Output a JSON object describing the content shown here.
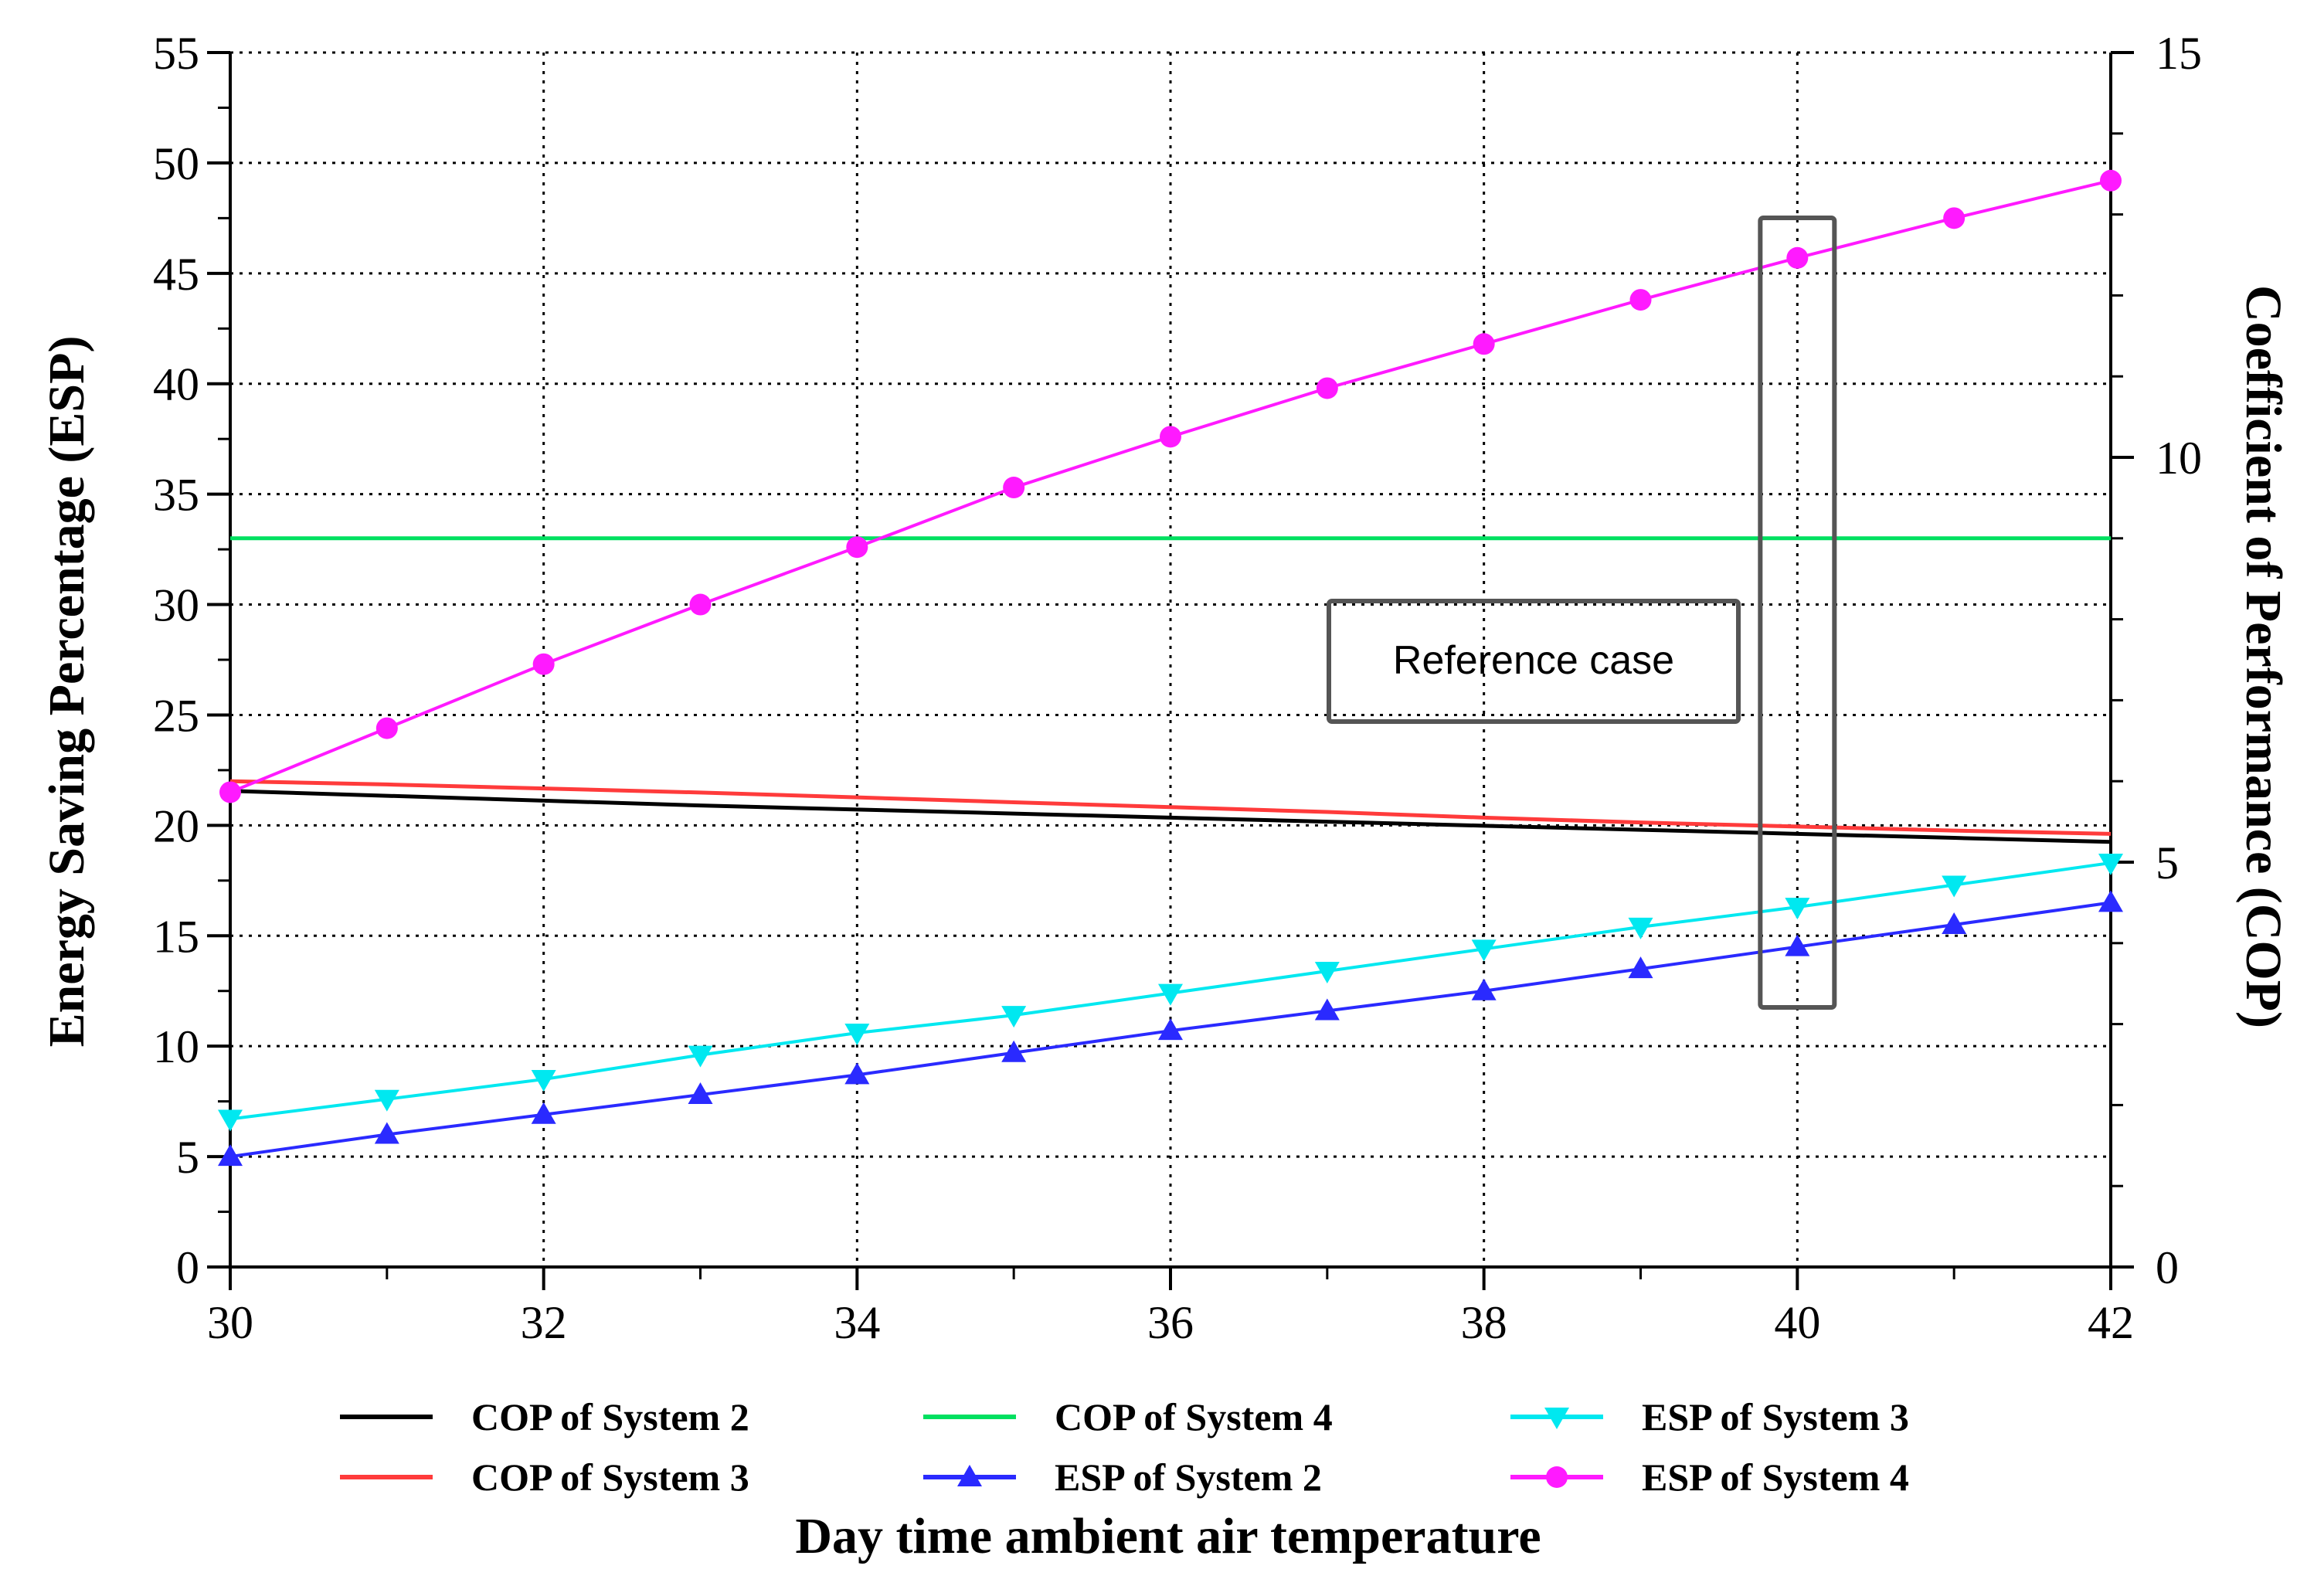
{
  "chart_data": {
    "type": "line",
    "xlabel": "Day time ambient air temperature",
    "ylabel": "Energy Saving Percentage (ESP)",
    "y2label": "Coefficient of Performance (COP)",
    "xlim": [
      30,
      42
    ],
    "ylim": [
      0,
      55
    ],
    "y2lim": [
      0,
      15
    ],
    "x_ticks": [
      30,
      32,
      34,
      36,
      38,
      40,
      42
    ],
    "y_ticks": [
      0,
      5,
      10,
      15,
      20,
      25,
      30,
      35,
      40,
      45,
      50,
      55
    ],
    "y2_ticks": [
      0,
      5,
      10,
      15
    ],
    "grid": true,
    "legend_position": "bottom",
    "x": [
      30,
      31,
      32,
      33,
      34,
      35,
      36,
      37,
      38,
      39,
      40,
      41,
      42
    ],
    "series": [
      {
        "name": "COP of System 2",
        "axis": "right",
        "color": "#000000",
        "marker": "none",
        "values": [
          5.88,
          5.82,
          5.76,
          5.7,
          5.65,
          5.6,
          5.55,
          5.5,
          5.45,
          5.4,
          5.35,
          5.3,
          5.25
        ]
      },
      {
        "name": "COP of System 3",
        "axis": "right",
        "color": "#ff3b3b",
        "marker": "none",
        "values": [
          6.0,
          5.96,
          5.91,
          5.86,
          5.8,
          5.74,
          5.68,
          5.62,
          5.55,
          5.49,
          5.44,
          5.39,
          5.35
        ]
      },
      {
        "name": "COP of System 4",
        "axis": "right",
        "color": "#00e060",
        "marker": "none",
        "values": [
          9.0,
          9.0,
          9.0,
          9.0,
          9.0,
          9.0,
          9.0,
          9.0,
          9.0,
          9.0,
          9.0,
          9.0,
          9.0
        ]
      },
      {
        "name": "ESP of System 2",
        "axis": "left",
        "color": "#2a2aff",
        "marker": "triangle-up",
        "values": [
          5.0,
          6.0,
          6.9,
          7.8,
          8.7,
          9.7,
          10.7,
          11.6,
          12.5,
          13.5,
          14.5,
          15.5,
          16.5
        ]
      },
      {
        "name": "ESP of System 3",
        "axis": "left",
        "color": "#00e8f0",
        "marker": "triangle-down",
        "values": [
          6.7,
          7.6,
          8.5,
          9.6,
          10.6,
          11.4,
          12.4,
          13.4,
          14.4,
          15.4,
          16.3,
          17.3,
          18.3
        ]
      },
      {
        "name": "ESP of System 4",
        "axis": "left",
        "color": "#ff1aff",
        "marker": "circle",
        "values": [
          21.5,
          24.4,
          27.3,
          30.0,
          32.6,
          35.3,
          37.6,
          39.8,
          41.8,
          43.8,
          45.7,
          47.5,
          49.2
        ]
      }
    ],
    "annotations": [
      {
        "text": "Reference case",
        "target_x": 40
      }
    ]
  }
}
